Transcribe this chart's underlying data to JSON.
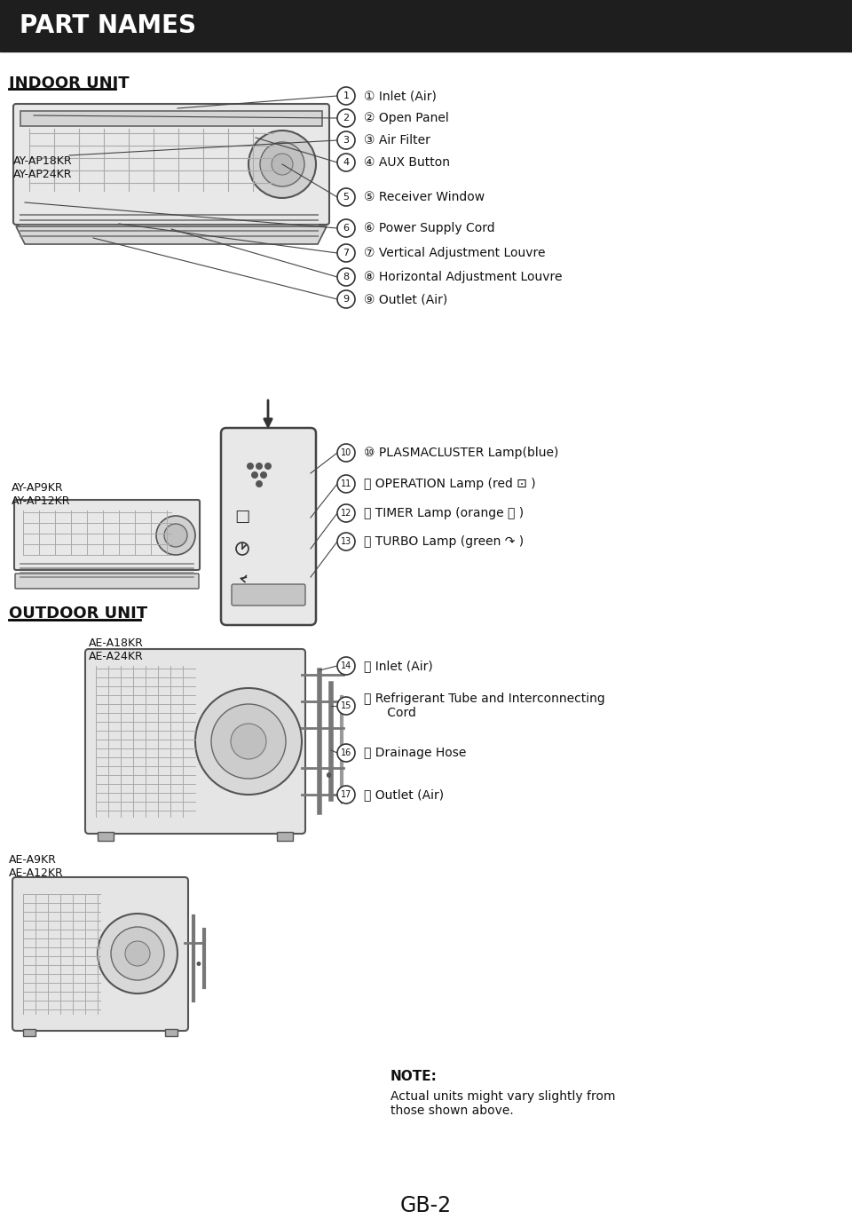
{
  "title": "PART NAMES",
  "title_bg": "#1e1e1e",
  "title_color": "#ffffff",
  "bg_color": "#ffffff",
  "section1_label": "INDOOR UNIT",
  "section2_label": "OUTDOOR UNIT",
  "indoor_model1": "AY-AP18KR\nAY-AP24KR",
  "indoor_model2": "AY-AP9KR\nAY-AP12KR",
  "outdoor_model1": "AE-A18KR\nAE-A24KR",
  "outdoor_model2": "AE-A9KR\nAE-A12KR",
  "parts_list_indoor": [
    "① Inlet (Air)",
    "② Open Panel",
    "③ Air Filter",
    "④ AUX Button",
    "⑤ Receiver Window",
    "⑥ Power Supply Cord",
    "⑦ Vertical Adjustment Louvre",
    "⑧ Horizontal Adjustment Louvre",
    "⑨ Outlet (Air)"
  ],
  "parts_list_panel": [
    "⑩ PLASMACLUSTER Lamp(blue)",
    "⑪ OPERATION Lamp (red ⊡ )",
    "⑫ TIMER Lamp (orange ⌛ )",
    "⑬ TURBO Lamp (green ↷ )"
  ],
  "parts_list_outdoor": [
    "⑭ Inlet (Air)",
    "⑮ Refrigerant Tube and Interconnecting\n      Cord",
    "⑯ Drainage Hose",
    "ⓐ Outlet (Air)"
  ],
  "note_title": "NOTE:",
  "note_text": "Actual units might vary slightly from\nthose shown above.",
  "footer": "GB-2",
  "label_color": "#111111",
  "section_color": "#111111"
}
